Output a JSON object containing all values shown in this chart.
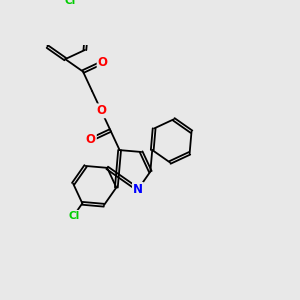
{
  "background_color": "#e8e8e8",
  "bond_color": "#000000",
  "atom_colors": {
    "N": "#0000ff",
    "O": "#ff0000",
    "Cl": "#00cc00"
  },
  "lw": 1.3,
  "dbo": 0.055,
  "fs": 8.5,
  "xlim": [
    0,
    10
  ],
  "ylim": [
    0,
    10
  ]
}
